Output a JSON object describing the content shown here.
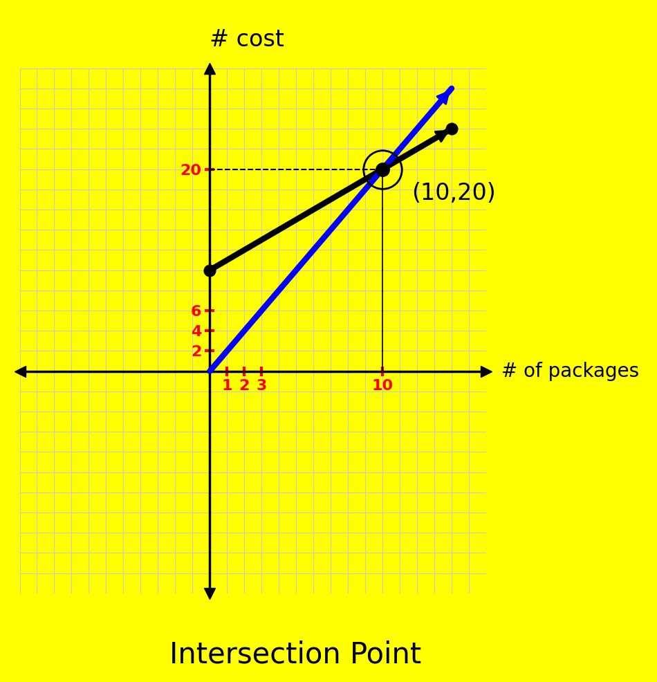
{
  "chart_data": {
    "type": "line",
    "y_label": "# cost",
    "x_label": "# of packages",
    "caption": "Intersection Point",
    "x": [
      0,
      10,
      14
    ],
    "series": [
      {
        "color": "#000000",
        "values": [
          10,
          20,
          24
        ],
        "marker": "o"
      },
      {
        "color": "#0000ff",
        "values": [
          0,
          20,
          28
        ]
      }
    ],
    "annotations": [
      {
        "x": 10,
        "y": 20,
        "text": "(10,20)"
      }
    ],
    "xlim": [
      -11,
      16
    ],
    "ylim": [
      -22,
      30
    ],
    "xticks": [
      1,
      2,
      3,
      10
    ],
    "yticks": [
      2,
      4,
      6,
      20
    ],
    "grid": true
  }
}
